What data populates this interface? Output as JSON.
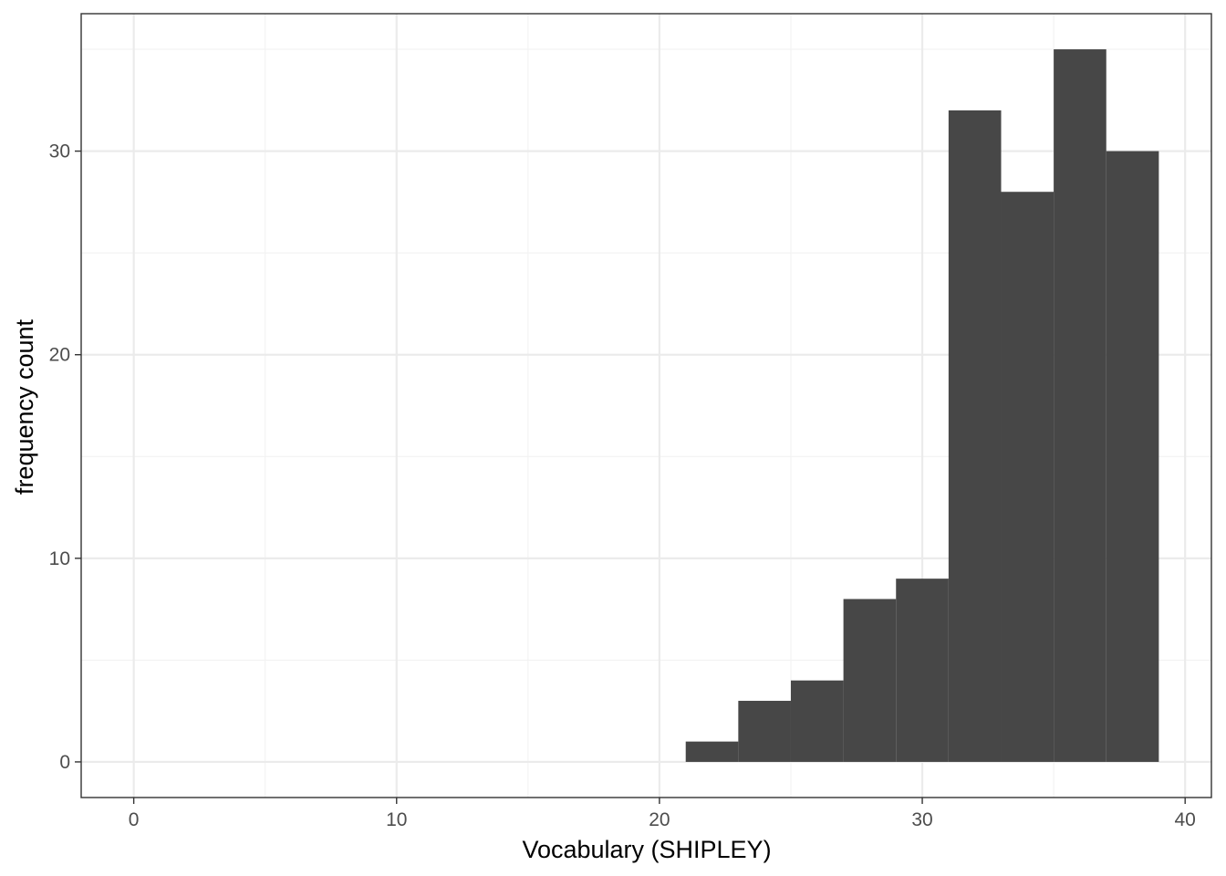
{
  "chart_data": {
    "type": "bar",
    "title": "",
    "xlabel": "Vocabulary (SHIPLEY)",
    "ylabel": "frequency count",
    "xlim": [
      -2,
      41
    ],
    "ylim": [
      -1.75,
      36.75
    ],
    "x_ticks": [
      0,
      10,
      20,
      30,
      40
    ],
    "x_tick_labels": [
      "0",
      "10",
      "20",
      "30",
      "40"
    ],
    "y_ticks": [
      0,
      10,
      20,
      30
    ],
    "y_tick_labels": [
      "0",
      "10",
      "20",
      "30"
    ],
    "x_minor_grid": [
      5,
      15,
      25,
      35
    ],
    "y_minor_grid": [
      5,
      15,
      25,
      35
    ],
    "grid": true,
    "legend": "none",
    "bin_width": 2,
    "bins": [
      {
        "x_start": 21,
        "x_end": 23,
        "count": 1
      },
      {
        "x_start": 23,
        "x_end": 25,
        "count": 3
      },
      {
        "x_start": 25,
        "x_end": 27,
        "count": 4
      },
      {
        "x_start": 27,
        "x_end": 29,
        "count": 8
      },
      {
        "x_start": 29,
        "x_end": 31,
        "count": 9
      },
      {
        "x_start": 31,
        "x_end": 33,
        "count": 32
      },
      {
        "x_start": 33,
        "x_end": 35,
        "count": 28
      },
      {
        "x_start": 35,
        "x_end": 37,
        "count": 35
      },
      {
        "x_start": 37,
        "x_end": 39,
        "count": 30
      }
    ],
    "colors": {
      "bar_fill": "#474747",
      "panel_border": "#333333",
      "grid_major": "#ebebeb",
      "grid_minor": "#f2f2f2",
      "tick_text": "#4d4d4d",
      "tick_mark": "#333333"
    }
  }
}
